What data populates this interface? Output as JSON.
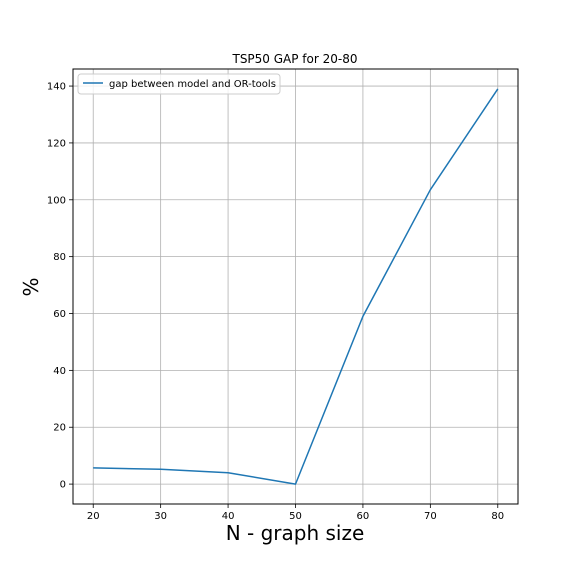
{
  "chart_data": {
    "type": "line",
    "title": "TSP50 GAP for 20-80",
    "xlabel": "N - graph size",
    "ylabel": "%",
    "x": [
      20,
      30,
      40,
      50,
      60,
      70,
      80
    ],
    "series": [
      {
        "name": "gap between model and OR-tools",
        "values": [
          5.7,
          5.2,
          4.0,
          0.0,
          59.0,
          103.5,
          139.0
        ],
        "color": "#1f77b4"
      }
    ],
    "xlim": [
      17,
      83
    ],
    "ylim": [
      -7,
      146
    ],
    "xticks": [
      20,
      30,
      40,
      50,
      60,
      70,
      80
    ],
    "yticks": [
      0,
      20,
      40,
      60,
      80,
      100,
      120,
      140
    ],
    "grid": true,
    "legend_position": "top-left"
  }
}
